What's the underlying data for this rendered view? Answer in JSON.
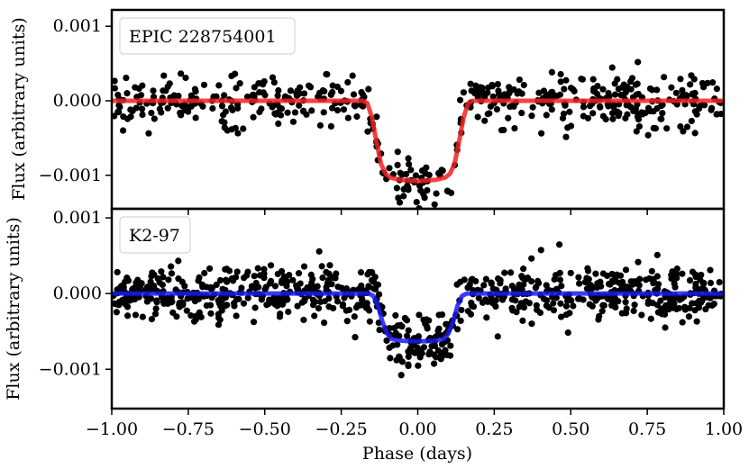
{
  "chart_data": [
    {
      "type": "scatter",
      "legend": "EPIC 228754001",
      "legend_position": "top-left",
      "ylabel": "Flux (arbitrary units)",
      "xlim": [
        -1.0,
        1.0
      ],
      "ylim": [
        -0.00145,
        0.00122
      ],
      "yticks": [
        0.001,
        0.0,
        -0.001
      ],
      "ytick_labels": [
        "0.001",
        "0.000",
        "−0.001"
      ],
      "grid": false,
      "point_color": "#000000",
      "model_color": "#ee2222",
      "transit": {
        "depth": 0.00108,
        "half_width": 0.165,
        "ingress": 0.06
      },
      "noise_sigma": 0.00018,
      "n_points": 520,
      "model": {
        "x": [
          -1.0,
          -0.18,
          -0.165,
          -0.15,
          -0.135,
          -0.12,
          -0.105,
          -0.09,
          -0.06,
          -0.03,
          0.0,
          0.03,
          0.06,
          0.09,
          0.105,
          0.12,
          0.135,
          0.15,
          0.165,
          0.18,
          1.0
        ],
        "y": [
          0.0,
          0.0,
          -3e-05,
          -0.00022,
          -0.00055,
          -0.00085,
          -0.00098,
          -0.00103,
          -0.00106,
          -0.00107,
          -0.00108,
          -0.00107,
          -0.00106,
          -0.00103,
          -0.00098,
          -0.00085,
          -0.00055,
          -0.00022,
          -3e-05,
          0.0,
          0.0
        ]
      }
    },
    {
      "type": "scatter",
      "legend": "K2-97",
      "legend_position": "top-left",
      "ylabel": "Flux (arbitrary units)",
      "xlabel": "Phase (days)",
      "xlim": [
        -1.0,
        1.0
      ],
      "ylim": [
        -0.00152,
        0.00112
      ],
      "xticks": [
        -1.0,
        -0.75,
        -0.5,
        -0.25,
        0.0,
        0.25,
        0.5,
        0.75,
        1.0
      ],
      "xtick_labels": [
        "−1.00",
        "−0.75",
        "−0.50",
        "−0.25",
        "0.00",
        "0.25",
        "0.50",
        "0.75",
        "1.00"
      ],
      "yticks": [
        0.001,
        0.0,
        -0.001
      ],
      "ytick_labels": [
        "0.001",
        "0.000",
        "−0.001"
      ],
      "grid": false,
      "point_color": "#000000",
      "model_color": "#1a1aee",
      "transit": {
        "depth": 0.00063,
        "half_width": 0.145,
        "ingress": 0.055
      },
      "noise_sigma": 0.00017,
      "n_points": 800,
      "model": {
        "x": [
          -1.0,
          -0.16,
          -0.145,
          -0.13,
          -0.115,
          -0.1,
          -0.085,
          -0.06,
          -0.03,
          0.0,
          0.03,
          0.06,
          0.085,
          0.1,
          0.115,
          0.13,
          0.145,
          0.16,
          1.0
        ],
        "y": [
          0.0,
          0.0,
          -3e-05,
          -0.00016,
          -0.00038,
          -0.00053,
          -0.0006,
          -0.00062,
          -0.00063,
          -0.00063,
          -0.00063,
          -0.00062,
          -0.0006,
          -0.00053,
          -0.00038,
          -0.00016,
          -3e-05,
          0.0,
          0.0
        ]
      }
    }
  ]
}
